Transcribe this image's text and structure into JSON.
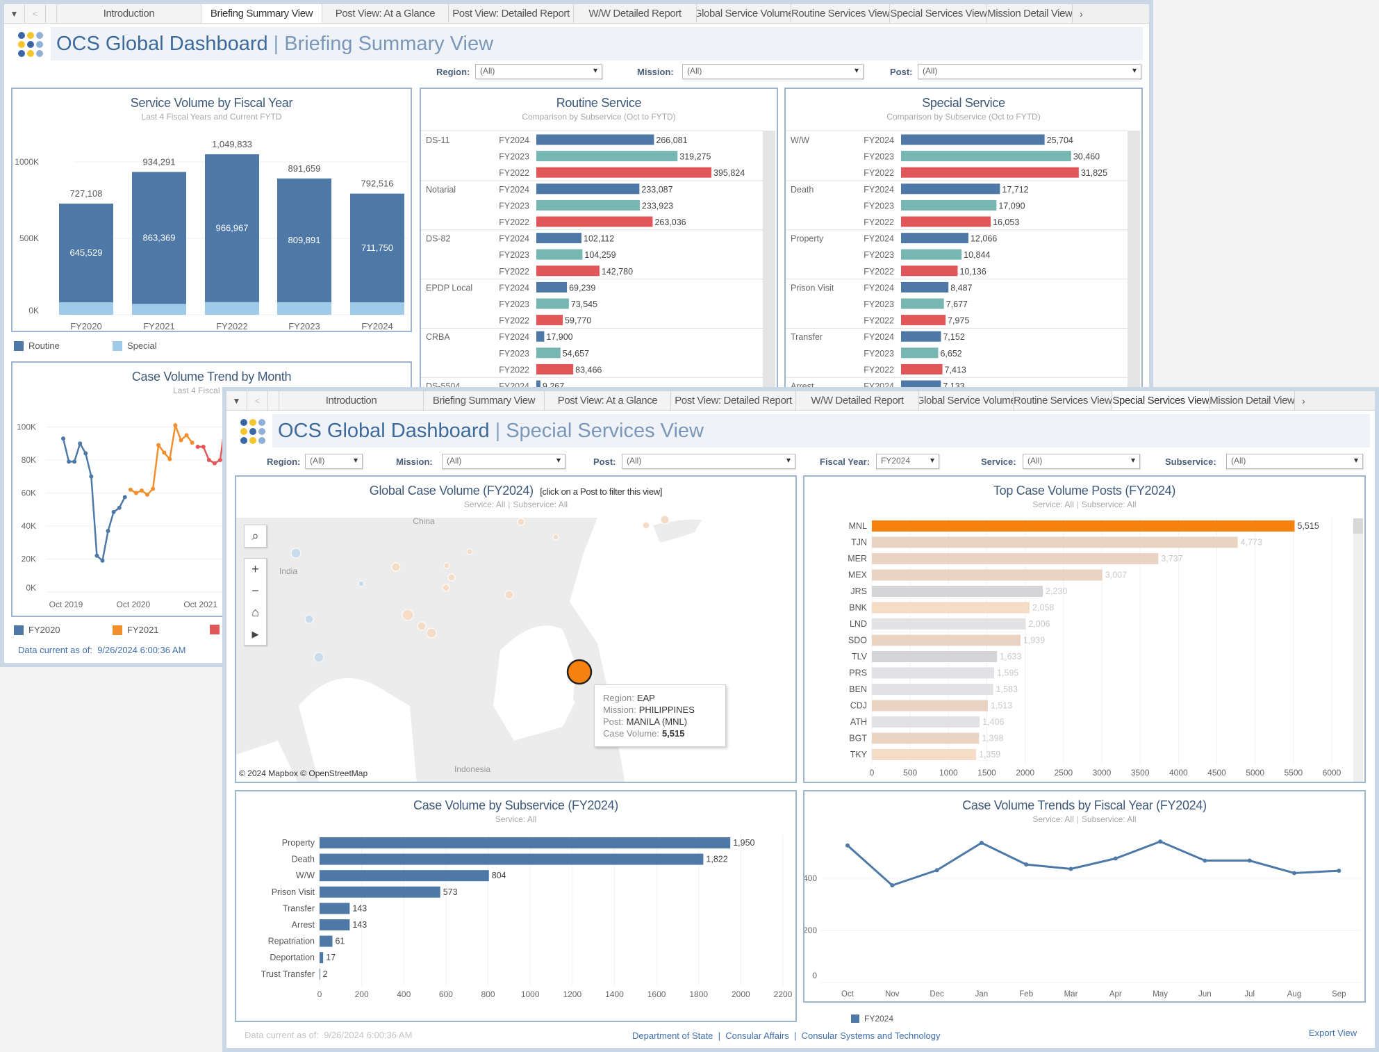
{
  "tabs": [
    "Introduction",
    "Briefing Summary View",
    "Post View: At a Glance",
    "Post View: Detailed Report",
    "W/W Detailed Report",
    "Global Service Volume",
    "Routine Services View",
    "Special Services View",
    "Mission Detail View"
  ],
  "back": {
    "active_tab": "Briefing Summary View",
    "title": "OCS Global Dashboard",
    "view": "Briefing Summary View",
    "filters": {
      "region_label": "Region:",
      "region": "(All)",
      "mission_label": "Mission:",
      "mission": "(All)",
      "post_label": "Post:",
      "post": "(All)"
    },
    "legend_volume": [
      "Routine",
      "Special"
    ],
    "legend_trend": [
      "FY2020",
      "FY2021"
    ],
    "data_current_label": "Data current as of:",
    "data_current": "9/26/2024 6:00:36 AM"
  },
  "front": {
    "active_tab": "Special Services View",
    "title": "OCS Global Dashboard",
    "view": "Special Services View",
    "filters": {
      "region_label": "Region:",
      "region": "(All)",
      "mission_label": "Mission:",
      "mission": "(All)",
      "post_label": "Post:",
      "post": "(All)",
      "fy_label": "Fiscal Year:",
      "fy": "FY2024",
      "service_label": "Service:",
      "service": "(All)",
      "subservice_label": "Subservice:",
      "subservice": "(All)"
    },
    "map": {
      "title": "Global Case Volume (FY2024)",
      "hint": "[click on a Post to filter this view]",
      "subtitle_service": "Service:  All",
      "subtitle_subservice": "Subservice:  All",
      "labels": [
        "China",
        "India",
        "Indonesia"
      ],
      "attribution": "© 2024 Mapbox © OpenStreetMap",
      "highlight_color": "#f7810f",
      "tooltip": {
        "region_label": "Region:",
        "region": "EAP",
        "mission_label": "Mission:",
        "mission": "PHILIPPINES",
        "post_label": "Post:",
        "post": "MANILA (MNL)",
        "volume_label": "Case Volume:",
        "volume": "5,515"
      }
    },
    "footer": {
      "data_current_label": "Data current as of:",
      "data_current": "9/26/2024 6:00:36 AM",
      "org1": "Department of State",
      "org2": "Consular Affairs",
      "org3": "Consular Systems and Technology",
      "sep": "|",
      "export": "Export View"
    }
  },
  "colors": {
    "routine": "#4e79a7",
    "special": "#a0cbe8",
    "fy2024": "#4e79a7",
    "fy2023": "#76b7b2",
    "fy2022": "#e15759",
    "fy2021": "#f28e2b",
    "highlight": "#f7810f"
  },
  "chart_data": [
    {
      "type": "bar",
      "stacked": true,
      "title": "Service Volume by Fiscal Year",
      "subtitle": "Last 4 Fiscal Years and Current FYTD",
      "categories": [
        "FY2020",
        "FY2021",
        "FY2022",
        "FY2023",
        "FY2024"
      ],
      "series": [
        {
          "name": "Routine",
          "values": [
            645529,
            863369,
            966967,
            809891,
            711750
          ]
        },
        {
          "name": "Special",
          "values": [
            81579,
            70922,
            82866,
            81768,
            80766
          ]
        }
      ],
      "totals": [
        727108,
        934291,
        1049833,
        891659,
        792516
      ],
      "routine_labels": [
        "645,529",
        "863,369",
        "966,967",
        "809,891",
        "711,750"
      ],
      "total_labels": [
        "727,108",
        "934,291",
        "1,049,833",
        "891,659",
        "792,516"
      ],
      "y_ticks": [
        "0K",
        "500K",
        "1000K"
      ],
      "ylim": [
        0,
        1100000
      ],
      "legend": "bottom-left"
    },
    {
      "type": "bar",
      "orientation": "horizontal",
      "title": "Routine Service",
      "subtitle": "Comparison by Subservice (Oct to FYTD)",
      "groups": [
        {
          "name": "DS-11",
          "rows": [
            [
              "FY2024",
              266081,
              "266,081"
            ],
            [
              "FY2023",
              319275,
              "319,275"
            ],
            [
              "FY2022",
              395824,
              "395,824"
            ]
          ]
        },
        {
          "name": "Notarial",
          "rows": [
            [
              "FY2024",
              233087,
              "233,087"
            ],
            [
              "FY2023",
              233923,
              "233,923"
            ],
            [
              "FY2022",
              263036,
              "263,036"
            ]
          ]
        },
        {
          "name": "DS-82",
          "rows": [
            [
              "FY2024",
              102112,
              "102,112"
            ],
            [
              "FY2023",
              104259,
              "104,259"
            ],
            [
              "FY2022",
              142780,
              "142,780"
            ]
          ]
        },
        {
          "name": "EPDP Local",
          "rows": [
            [
              "FY2024",
              69239,
              "69,239"
            ],
            [
              "FY2023",
              73545,
              "73,545"
            ],
            [
              "FY2022",
              59770,
              "59,770"
            ]
          ]
        },
        {
          "name": "CRBA",
          "rows": [
            [
              "FY2024",
              17900,
              "17,900"
            ],
            [
              "FY2023",
              54657,
              "54,657"
            ],
            [
              "FY2022",
              83466,
              "83,466"
            ]
          ]
        },
        {
          "name": "DS-5504",
          "rows": [
            [
              "FY2024",
              9267,
              "9,267"
            ]
          ]
        }
      ]
    },
    {
      "type": "bar",
      "orientation": "horizontal",
      "title": "Special Service",
      "subtitle": "Comparison by Subservice (Oct to FYTD)",
      "groups": [
        {
          "name": "W/W",
          "rows": [
            [
              "FY2024",
              25704,
              "25,704"
            ],
            [
              "FY2023",
              30460,
              "30,460"
            ],
            [
              "FY2022",
              31825,
              "31,825"
            ]
          ]
        },
        {
          "name": "Death",
          "rows": [
            [
              "FY2024",
              17712,
              "17,712"
            ],
            [
              "FY2023",
              17090,
              "17,090"
            ],
            [
              "FY2022",
              16053,
              "16,053"
            ]
          ]
        },
        {
          "name": "Property",
          "rows": [
            [
              "FY2024",
              12066,
              "12,066"
            ],
            [
              "FY2023",
              10844,
              "10,844"
            ],
            [
              "FY2022",
              10136,
              "10,136"
            ]
          ]
        },
        {
          "name": "Prison Visit",
          "rows": [
            [
              "FY2024",
              8487,
              "8,487"
            ],
            [
              "FY2023",
              7677,
              "7,677"
            ],
            [
              "FY2022",
              7975,
              "7,975"
            ]
          ]
        },
        {
          "name": "Transfer",
          "rows": [
            [
              "FY2024",
              7152,
              "7,152"
            ],
            [
              "FY2023",
              6652,
              "6,652"
            ],
            [
              "FY2022",
              7413,
              "7,413"
            ]
          ]
        },
        {
          "name": "Arrest",
          "rows": [
            [
              "FY2024",
              7133,
              "7,133"
            ]
          ]
        }
      ]
    },
    {
      "type": "line",
      "title": "Case Volume Trend by Month",
      "subtitle": "Last 4 Fiscal Years a",
      "x_ticks": [
        "Oct 2019",
        "Oct 2020",
        "Oct 2021"
      ],
      "y_ticks": [
        "0K",
        "20K",
        "40K",
        "60K",
        "80K",
        "100K"
      ],
      "ylim": [
        0,
        110000
      ],
      "series": [
        {
          "name": "FY2020",
          "values": [
            93000,
            79000,
            79000,
            90000,
            84000,
            70000,
            22000,
            19000,
            37000,
            48500,
            51000,
            57500
          ]
        },
        {
          "name": "FY2021",
          "values": [
            62000,
            60000,
            61500,
            59000,
            62500,
            89000,
            84500,
            80500,
            101000,
            92000,
            95000,
            90500
          ]
        },
        {
          "name": "FY2022",
          "values": [
            88000,
            88000,
            80000,
            78000,
            80000,
            105000
          ]
        }
      ]
    },
    {
      "type": "bar",
      "orientation": "horizontal",
      "title": "Top Case Volume Posts (FY2024)",
      "subtitle_service": "Service:  All",
      "subtitle_subservice": "Subservice:  All",
      "categories": [
        "MNL",
        "TJN",
        "MER",
        "MEX",
        "JRS",
        "BNK",
        "LND",
        "SDO",
        "TLV",
        "PRS",
        "BEN",
        "CDJ",
        "ATH",
        "BGT",
        "TKY"
      ],
      "values": [
        5515,
        4773,
        3737,
        3007,
        2230,
        2058,
        2006,
        1939,
        1633,
        1595,
        1583,
        1513,
        1406,
        1398,
        1359
      ],
      "labels": [
        "5,515",
        "4,773",
        "3,737",
        "3,007",
        "2,230",
        "2,058",
        "2,006",
        "1,939",
        "1,633",
        "1,595",
        "1,583",
        "1,513",
        "1,406",
        "1,398",
        "1,359"
      ],
      "colors": [
        "#f7810f",
        "#ead3c3",
        "#ead3c3",
        "#ead3c3",
        "#d5d5d7",
        "#f4dcc6",
        "#e2e2e4",
        "#ead3c3",
        "#d5d5d7",
        "#e2e2e4",
        "#e2e2e4",
        "#ead3c3",
        "#e2e2e4",
        "#ead3c3",
        "#f4dcc6"
      ],
      "x_ticks": [
        "0",
        "500",
        "1000",
        "1500",
        "2000",
        "2500",
        "3000",
        "3500",
        "4000",
        "4500",
        "5000",
        "5500",
        "6000"
      ],
      "xlim": [
        0,
        6000
      ]
    },
    {
      "type": "bar",
      "orientation": "horizontal",
      "title": "Case Volume by Subservice (FY2024)",
      "subtitle": "Service:  All",
      "categories": [
        "Property",
        "Death",
        "W/W",
        "Prison Visit",
        "Transfer",
        "Arrest",
        "Repatriation",
        "Deportation",
        "Trust Transfer"
      ],
      "values": [
        1950,
        1822,
        804,
        573,
        143,
        143,
        61,
        17,
        2
      ],
      "labels": [
        "1,950",
        "1,822",
        "804",
        "573",
        "143",
        "143",
        "61",
        "17",
        "2"
      ],
      "x_ticks": [
        "0",
        "200",
        "400",
        "600",
        "800",
        "1000",
        "1200",
        "1400",
        "1600",
        "1800",
        "2000",
        "2200"
      ],
      "xlim": [
        0,
        2200
      ]
    },
    {
      "type": "line",
      "title": "Case Volume Trends by Fiscal Year (FY2024)",
      "subtitle_service": "Service:  All",
      "subtitle_subservice": "Subservice:  All",
      "categories": [
        "Oct",
        "Nov",
        "Dec",
        "Jan",
        "Feb",
        "Mar",
        "Apr",
        "May",
        "Jun",
        "Jul",
        "Aug",
        "Sep"
      ],
      "series": [
        {
          "name": "FY2024",
          "values": [
            526,
            373,
            431,
            536,
            453,
            436,
            476,
            541,
            468,
            468,
            420,
            429
          ]
        }
      ],
      "y_ticks": [
        "0",
        "200",
        "400"
      ],
      "ylim": [
        0,
        560
      ],
      "legend": "bottom-left"
    }
  ]
}
